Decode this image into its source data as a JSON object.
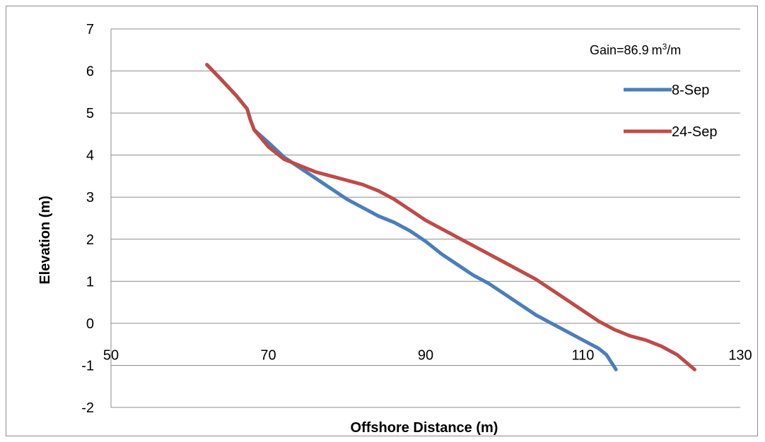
{
  "chart_data": {
    "type": "line",
    "title": "",
    "xlabel": "Offshore Distance (m)",
    "ylabel": "Elevation (m)",
    "xlim": [
      50,
      130
    ],
    "ylim": [
      -2,
      7
    ],
    "x_ticks": [
      50,
      70,
      90,
      110,
      130
    ],
    "y_ticks": [
      7,
      6,
      5,
      4,
      3,
      2,
      1,
      0,
      -1,
      -2
    ],
    "grid": "horizontal",
    "legend_position": "right",
    "annotation": {
      "prefix": "Gain",
      "equals": "=",
      "value": "86.9",
      "unit_base": "m",
      "unit_sup": "3",
      "unit_tail": "/m"
    },
    "series": [
      {
        "name": "8-Sep",
        "color": "#4a7ebb",
        "points": [
          [
            62.2,
            6.15
          ],
          [
            64.0,
            5.8
          ],
          [
            66.0,
            5.4
          ],
          [
            67.3,
            5.1
          ],
          [
            67.7,
            4.85
          ],
          [
            68.2,
            4.6
          ],
          [
            70.0,
            4.3
          ],
          [
            72.0,
            3.95
          ],
          [
            74.0,
            3.7
          ],
          [
            76.0,
            3.45
          ],
          [
            78.0,
            3.2
          ],
          [
            80.0,
            2.95
          ],
          [
            81.0,
            2.85
          ],
          [
            82.0,
            2.75
          ],
          [
            84.0,
            2.55
          ],
          [
            86.0,
            2.4
          ],
          [
            88.0,
            2.2
          ],
          [
            90.0,
            1.95
          ],
          [
            92.0,
            1.65
          ],
          [
            94.0,
            1.4
          ],
          [
            96.0,
            1.15
          ],
          [
            98.0,
            0.95
          ],
          [
            100.0,
            0.7
          ],
          [
            102.0,
            0.45
          ],
          [
            104.0,
            0.2
          ],
          [
            106.0,
            0.0
          ],
          [
            108.0,
            -0.2
          ],
          [
            110.0,
            -0.4
          ],
          [
            112.0,
            -0.6
          ],
          [
            113.0,
            -0.75
          ],
          [
            114.2,
            -1.1
          ]
        ]
      },
      {
        "name": "24-Sep",
        "color": "#be4b48",
        "points": [
          [
            62.2,
            6.15
          ],
          [
            64.0,
            5.8
          ],
          [
            66.0,
            5.4
          ],
          [
            67.3,
            5.1
          ],
          [
            67.7,
            4.85
          ],
          [
            68.2,
            4.6
          ],
          [
            70.0,
            4.2
          ],
          [
            72.0,
            3.9
          ],
          [
            74.0,
            3.75
          ],
          [
            76.0,
            3.6
          ],
          [
            78.0,
            3.5
          ],
          [
            80.0,
            3.4
          ],
          [
            82.0,
            3.3
          ],
          [
            84.0,
            3.15
          ],
          [
            86.0,
            2.95
          ],
          [
            88.0,
            2.7
          ],
          [
            90.0,
            2.45
          ],
          [
            92.0,
            2.25
          ],
          [
            94.0,
            2.05
          ],
          [
            96.0,
            1.85
          ],
          [
            98.0,
            1.65
          ],
          [
            100.0,
            1.45
          ],
          [
            102.0,
            1.25
          ],
          [
            104.0,
            1.05
          ],
          [
            106.0,
            0.8
          ],
          [
            108.0,
            0.55
          ],
          [
            110.0,
            0.3
          ],
          [
            112.0,
            0.05
          ],
          [
            114.0,
            -0.15
          ],
          [
            116.0,
            -0.3
          ],
          [
            118.0,
            -0.4
          ],
          [
            120.0,
            -0.55
          ],
          [
            122.0,
            -0.75
          ],
          [
            124.2,
            -1.1
          ]
        ]
      }
    ]
  }
}
